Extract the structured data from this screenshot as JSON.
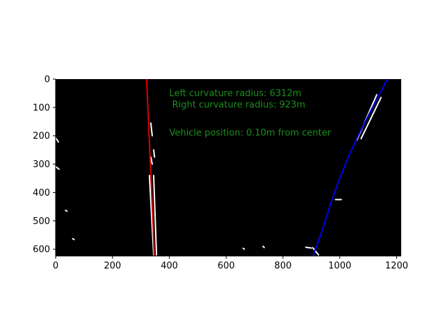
{
  "chart_data": {
    "type": "image-with-fit-lines",
    "title": "",
    "xlabel": "",
    "ylabel": "",
    "xlim": [
      0,
      1216
    ],
    "ylim": [
      624,
      0
    ],
    "x_ticks": [
      0,
      200,
      400,
      600,
      800,
      1000,
      1200
    ],
    "y_ticks": [
      0,
      100,
      200,
      300,
      400,
      500,
      600
    ],
    "background_color": "#000000",
    "series": [
      {
        "name": "left lane fit",
        "color": "#dd0000",
        "x": [
          320,
          324,
          328,
          332,
          336,
          340,
          344,
          347
        ],
        "y": [
          0,
          90,
          180,
          270,
          360,
          450,
          540,
          624
        ]
      },
      {
        "name": "right lane fit",
        "color": "#0000ee",
        "x": [
          1168,
          1120,
          1074,
          1032,
          996,
          964,
          936,
          905
        ],
        "y": [
          0,
          90,
          180,
          270,
          360,
          450,
          540,
          624
        ]
      }
    ],
    "pixel_segments": [
      {
        "x1": 335,
        "y1": 155,
        "x2": 340,
        "y2": 200
      },
      {
        "x1": 345,
        "y1": 250,
        "x2": 348,
        "y2": 275
      },
      {
        "x1": 335,
        "y1": 275,
        "x2": 340,
        "y2": 300
      },
      {
        "x1": 330,
        "y1": 340,
        "x2": 345,
        "y2": 620
      },
      {
        "x1": 345,
        "y1": 340,
        "x2": 355,
        "y2": 620
      },
      {
        "x1": 1130,
        "y1": 55,
        "x2": 1060,
        "y2": 215
      },
      {
        "x1": 1145,
        "y1": 65,
        "x2": 1075,
        "y2": 210
      },
      {
        "x1": 905,
        "y1": 595,
        "x2": 925,
        "y2": 620
      },
      {
        "x1": 985,
        "y1": 425,
        "x2": 1005,
        "y2": 425
      },
      {
        "x1": 880,
        "y1": 593,
        "x2": 900,
        "y2": 596
      },
      {
        "x1": 2,
        "y1": 210,
        "x2": 10,
        "y2": 222
      },
      {
        "x1": 2,
        "y1": 310,
        "x2": 12,
        "y2": 318
      },
      {
        "x1": 35,
        "y1": 463,
        "x2": 40,
        "y2": 466
      },
      {
        "x1": 60,
        "y1": 563,
        "x2": 65,
        "y2": 566
      },
      {
        "x1": 660,
        "y1": 597,
        "x2": 664,
        "y2": 600
      },
      {
        "x1": 730,
        "y1": 590,
        "x2": 734,
        "y2": 594
      }
    ],
    "annotations": [
      {
        "text": "Left curvature radius: 6312m",
        "x": 400,
        "y": 60
      },
      {
        "text": " Right curvature radius: 923m",
        "x": 400,
        "y": 100
      },
      {
        "text": "Vehicle position: 0.10m from center",
        "x": 400,
        "y": 200
      }
    ],
    "annotation_color": "#1a8f1a"
  }
}
